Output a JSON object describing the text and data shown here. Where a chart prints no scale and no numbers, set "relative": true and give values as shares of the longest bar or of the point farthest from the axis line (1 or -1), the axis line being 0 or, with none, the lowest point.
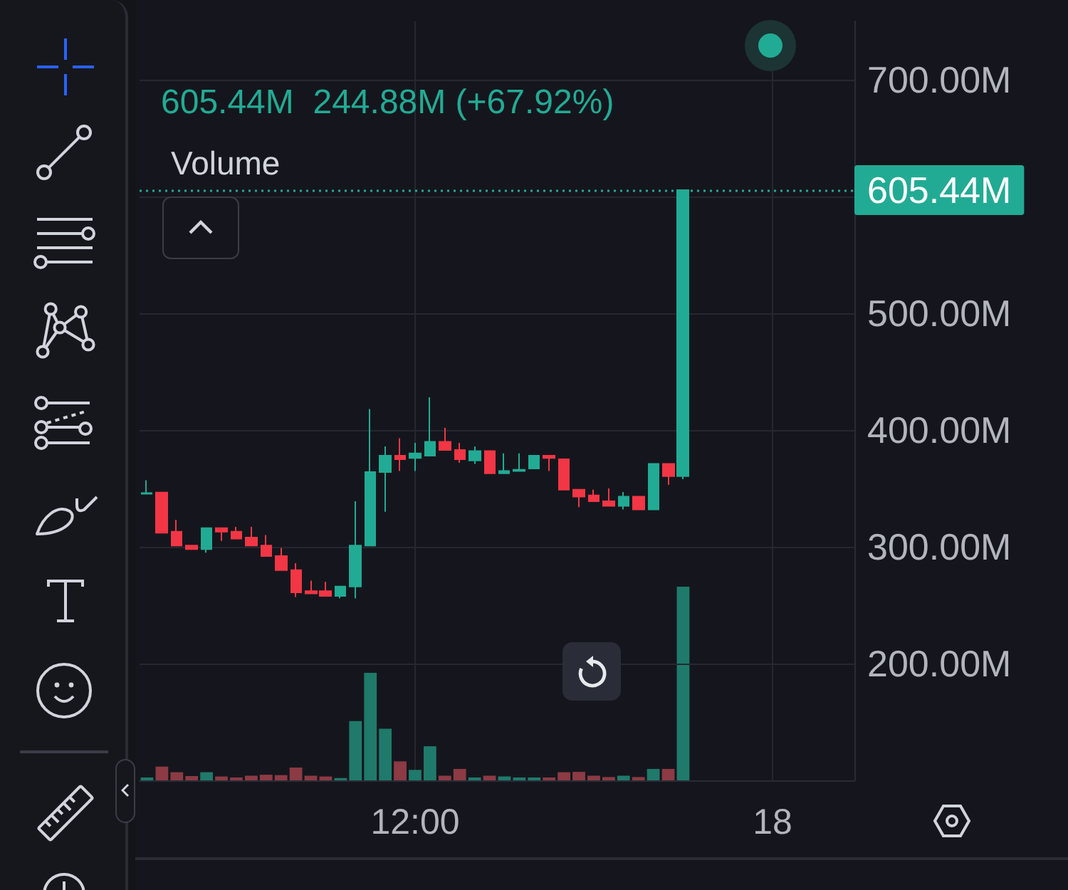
{
  "chart_data": [
    {
      "type": "candlestick",
      "annotations": [
        "605.44M  244.88M (+67.92%)"
      ],
      "categories": [
        null,
        null,
        null,
        null,
        null,
        null,
        null,
        null,
        null,
        null,
        null,
        null,
        null,
        null,
        null,
        null,
        null,
        null,
        null,
        null,
        null,
        null,
        null,
        null,
        null,
        null,
        null,
        null,
        null,
        null,
        null,
        null,
        null,
        null,
        null,
        null,
        null,
        null,
        null,
        null,
        null,
        null,
        null,
        null,
        null,
        null,
        null,
        null
      ],
      "ohlc": [
        [
          345.5,
          357,
          345.5,
          346
        ],
        [
          346.5,
          346.5,
          312,
          312
        ],
        [
          313,
          323,
          301,
          301
        ],
        [
          301,
          301,
          298,
          298
        ],
        [
          298,
          316,
          295,
          316
        ],
        [
          316,
          316,
          305,
          313
        ],
        [
          313,
          317,
          307,
          307
        ],
        [
          308,
          317,
          301,
          301
        ],
        [
          301,
          310,
          292,
          292
        ],
        [
          292,
          299,
          280,
          280
        ],
        [
          280,
          286,
          257,
          261
        ],
        [
          262,
          271,
          260,
          260
        ],
        [
          262,
          270,
          258,
          258
        ],
        [
          258,
          266,
          256,
          266
        ],
        [
          266,
          339,
          256,
          301
        ],
        [
          301,
          418,
          301,
          364
        ],
        [
          364,
          386,
          330,
          378
        ],
        [
          378,
          393,
          365,
          375
        ],
        [
          376,
          389,
          365,
          380
        ],
        [
          378,
          428,
          378,
          390
        ],
        [
          390,
          402,
          383,
          383
        ],
        [
          383,
          389,
          372,
          375
        ],
        [
          374,
          386,
          371,
          382
        ],
        [
          382,
          382,
          363,
          363
        ],
        [
          363,
          380,
          363,
          365
        ],
        [
          365,
          380,
          365,
          366
        ],
        [
          367,
          378,
          367,
          378
        ],
        [
          378,
          378,
          365,
          376
        ],
        [
          375,
          375,
          349,
          349
        ],
        [
          349,
          349,
          334,
          343
        ],
        [
          344,
          349,
          339,
          339
        ],
        [
          339,
          350,
          335,
          335
        ],
        [
          335,
          347,
          332,
          343
        ],
        [
          343,
          343,
          332,
          332
        ],
        [
          332,
          371,
          332,
          371
        ],
        [
          371,
          371,
          353,
          360.56
        ],
        [
          360.56,
          605.44,
          358,
          605.44
        ],
        null,
        null,
        null,
        null,
        null,
        null,
        null,
        null,
        null,
        null,
        null
      ],
      "ylim": [
        100,
        750
      ],
      "yticks": [
        {
          "value": 200,
          "label": "200.00M"
        },
        {
          "value": 300,
          "label": "300.00M"
        },
        {
          "value": 400,
          "label": "400.00M"
        },
        {
          "value": 500,
          "label": "500.00M"
        },
        {
          "value": 600,
          "label": null
        },
        {
          "value": 700,
          "label": "700.00M"
        }
      ],
      "grid": "y",
      "ref_lines": [
        {
          "axis": "y",
          "value": 605.44,
          "label": "605.44M",
          "color": "#22ab94",
          "line_style": "dotted"
        }
      ]
    },
    {
      "type": "bar",
      "title": "Volume",
      "relative": true,
      "grid": "x",
      "categories": [
        null,
        null,
        null,
        null,
        null,
        null,
        null,
        null,
        null,
        null,
        null,
        null,
        null,
        null,
        null,
        null,
        null,
        null,
        "12:00",
        null,
        null,
        null,
        null,
        null,
        null,
        null,
        null,
        null,
        null,
        null,
        null,
        null,
        null,
        null,
        null,
        null,
        null,
        null,
        null,
        null,
        null,
        null,
        "18",
        null,
        null,
        null,
        null,
        null
      ],
      "values": [
        0.015,
        0.071,
        0.042,
        0.022,
        0.042,
        0.02,
        0.015,
        0.024,
        0.029,
        0.027,
        0.066,
        0.024,
        0.02,
        0.012,
        0.306,
        0.555,
        0.267,
        0.098,
        0.054,
        0.176,
        0.024,
        0.059,
        0.015,
        0.024,
        0.02,
        0.015,
        0.015,
        0.015,
        0.042,
        0.044,
        0.024,
        0.017,
        0.024,
        0.017,
        0.059,
        0.059,
        1,
        null,
        null,
        null,
        null,
        null,
        null,
        null,
        null,
        null,
        null,
        null
      ],
      "colors": [
        "#1f7a6b",
        "#8c3a44",
        "#8c3a44",
        "#8c3a44",
        "#1f7a6b",
        "#8c3a44",
        "#8c3a44",
        "#8c3a44",
        "#8c3a44",
        "#8c3a44",
        "#8c3a44",
        "#8c3a44",
        "#8c3a44",
        "#1f7a6b",
        "#1f7a6b",
        "#1f7a6b",
        "#1f7a6b",
        "#8c3a44",
        "#1f7a6b",
        "#1f7a6b",
        "#8c3a44",
        "#8c3a44",
        "#1f7a6b",
        "#8c3a44",
        "#1f7a6b",
        "#1f7a6b",
        "#1f7a6b",
        "#8c3a44",
        "#8c3a44",
        "#8c3a44",
        "#8c3a44",
        "#8c3a44",
        "#1f7a6b",
        "#8c3a44",
        "#1f7a6b",
        "#8c3a44",
        "#1f7a6b",
        null,
        null,
        null,
        null,
        null,
        null,
        null,
        null,
        null,
        null,
        null
      ]
    }
  ]
}
